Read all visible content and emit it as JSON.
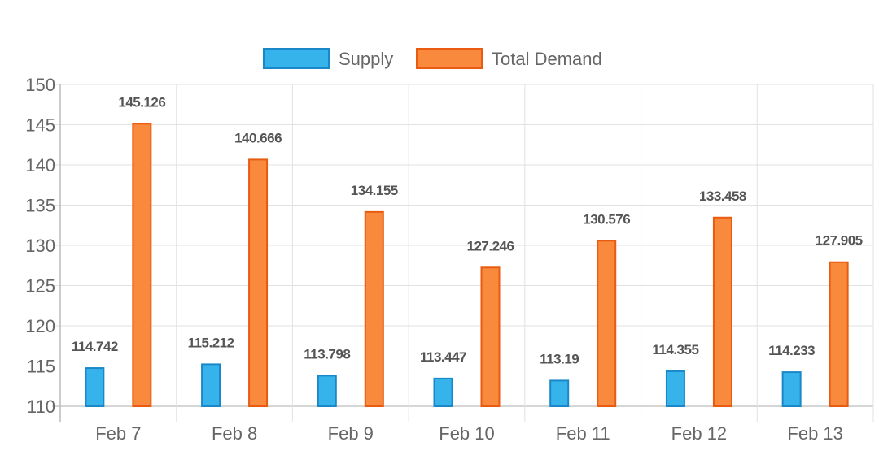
{
  "chart_data": {
    "type": "bar",
    "title": "",
    "xlabel": "",
    "ylabel": "",
    "categories": [
      "Feb 7",
      "Feb 8",
      "Feb 9",
      "Feb 10",
      "Feb 11",
      "Feb 12",
      "Feb 13"
    ],
    "series": [
      {
        "name": "Supply",
        "values": [
          114.742,
          115.212,
          113.798,
          113.447,
          113.19,
          114.355,
          114.233
        ],
        "color": "#36b3eb",
        "border": "#1a87c9"
      },
      {
        "name": "Total Demand",
        "values": [
          145.126,
          140.666,
          134.155,
          127.246,
          130.576,
          133.458,
          127.905
        ],
        "color": "#f98a3d",
        "border": "#e85b10"
      }
    ],
    "ylim": [
      110,
      150
    ],
    "yticks": [
      110,
      115,
      120,
      125,
      130,
      135,
      140,
      145,
      150
    ],
    "grid": true,
    "legend_position": "top",
    "data_labels": true
  }
}
